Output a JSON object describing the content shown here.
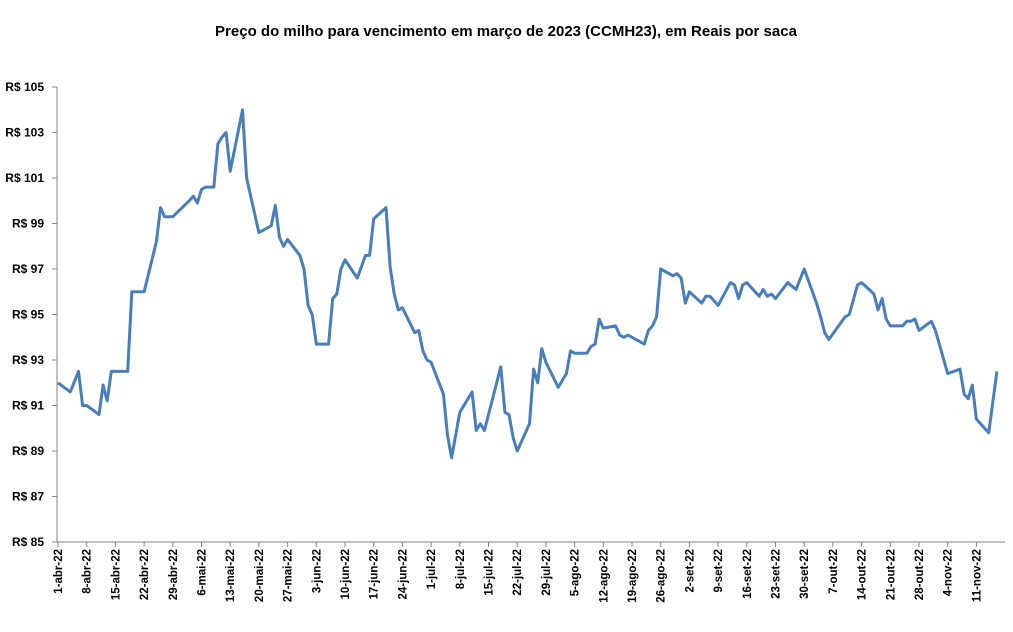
{
  "chart_data": {
    "type": "line",
    "title": "Preço do milho para vencimento em março de 2023 (CCMH23), em Reais por saca",
    "xlabel": "",
    "ylabel": "",
    "ylim": [
      85,
      105
    ],
    "y_ticks": [
      85,
      87,
      89,
      91,
      93,
      95,
      97,
      99,
      101,
      103,
      105
    ],
    "y_tick_labels": [
      "R$ 85",
      "R$ 87",
      "R$ 89",
      "R$ 91",
      "R$ 93",
      "R$ 95",
      "R$ 97",
      "R$ 99",
      "R$ 101",
      "R$ 103",
      "R$ 105"
    ],
    "x_unit": "days since 1-abr-22",
    "x_tick_labels": [
      "1-abr-22",
      "8-abr-22",
      "15-abr-22",
      "22-abr-22",
      "29-abr-22",
      "6-mai-22",
      "13-mai-22",
      "20-mai-22",
      "27-mai-22",
      "3-jun-22",
      "10-jun-22",
      "17-jun-22",
      "24-jun-22",
      "1-jul-22",
      "8-jul-22",
      "15-jul-22",
      "22-jul-22",
      "29-jul-22",
      "5-ago-22",
      "12-ago-22",
      "19-ago-22",
      "26-ago-22",
      "2-set-22",
      "9-set-22",
      "16-set-22",
      "23-set-22",
      "30-set-22",
      "7-out-22",
      "14-out-22",
      "21-out-22",
      "28-out-22",
      "4-nov-22",
      "11-nov-22"
    ],
    "x_tick_interval_days": 7,
    "xlim": [
      0,
      231
    ],
    "grid": false,
    "legend": "none",
    "line_color": "#4a7ebb",
    "series": [
      {
        "name": "CCMH23",
        "points": [
          [
            0,
            92.0
          ],
          [
            3,
            91.6
          ],
          [
            5,
            92.5
          ],
          [
            6,
            91.0
          ],
          [
            7,
            91.0
          ],
          [
            10,
            90.6
          ],
          [
            11,
            91.9
          ],
          [
            12,
            91.2
          ],
          [
            13,
            92.5
          ],
          [
            17,
            92.5
          ],
          [
            18,
            96.0
          ],
          [
            21,
            96.0
          ],
          [
            24,
            98.2
          ],
          [
            25,
            99.7
          ],
          [
            26,
            99.3
          ],
          [
            28,
            99.3
          ],
          [
            32,
            100.0
          ],
          [
            33,
            100.2
          ],
          [
            34,
            99.9
          ],
          [
            35,
            100.5
          ],
          [
            36,
            100.6
          ],
          [
            38,
            100.6
          ],
          [
            39,
            102.5
          ],
          [
            40,
            102.8
          ],
          [
            41,
            103.0
          ],
          [
            42,
            101.3
          ],
          [
            45,
            104.0
          ],
          [
            46,
            101.0
          ],
          [
            47,
            100.2
          ],
          [
            49,
            98.6
          ],
          [
            52,
            98.9
          ],
          [
            53,
            99.8
          ],
          [
            54,
            98.4
          ],
          [
            55,
            98.0
          ],
          [
            56,
            98.3
          ],
          [
            59,
            97.6
          ],
          [
            60,
            97.0
          ],
          [
            61,
            95.4
          ],
          [
            62,
            95.0
          ],
          [
            63,
            93.7
          ],
          [
            66,
            93.7
          ],
          [
            67,
            95.7
          ],
          [
            68,
            95.9
          ],
          [
            69,
            97.0
          ],
          [
            70,
            97.4
          ],
          [
            73,
            96.6
          ],
          [
            75,
            97.6
          ],
          [
            76,
            97.6
          ],
          [
            77,
            99.2
          ],
          [
            80,
            99.7
          ],
          [
            81,
            97.1
          ],
          [
            82,
            95.9
          ],
          [
            83,
            95.2
          ],
          [
            84,
            95.3
          ],
          [
            87,
            94.2
          ],
          [
            88,
            94.3
          ],
          [
            89,
            93.4
          ],
          [
            90,
            93.0
          ],
          [
            91,
            92.9
          ],
          [
            94,
            91.5
          ],
          [
            95,
            89.7
          ],
          [
            96,
            88.7
          ],
          [
            98,
            90.7
          ],
          [
            101,
            91.6
          ],
          [
            102,
            89.9
          ],
          [
            103,
            90.2
          ],
          [
            104,
            89.9
          ],
          [
            108,
            92.7
          ],
          [
            109,
            90.7
          ],
          [
            110,
            90.6
          ],
          [
            111,
            89.6
          ],
          [
            112,
            89.0
          ],
          [
            115,
            90.2
          ],
          [
            116,
            92.6
          ],
          [
            117,
            92.0
          ],
          [
            118,
            93.5
          ],
          [
            119,
            92.9
          ],
          [
            122,
            91.8
          ],
          [
            124,
            92.4
          ],
          [
            125,
            93.4
          ],
          [
            126,
            93.3
          ],
          [
            129,
            93.3
          ],
          [
            130,
            93.6
          ],
          [
            131,
            93.7
          ],
          [
            132,
            94.8
          ],
          [
            133,
            94.4
          ],
          [
            136,
            94.5
          ],
          [
            137,
            94.1
          ],
          [
            138,
            94.0
          ],
          [
            139,
            94.1
          ],
          [
            143,
            93.7
          ],
          [
            144,
            94.3
          ],
          [
            145,
            94.5
          ],
          [
            146,
            94.9
          ],
          [
            147,
            97.0
          ],
          [
            150,
            96.7
          ],
          [
            151,
            96.8
          ],
          [
            152,
            96.6
          ],
          [
            153,
            95.5
          ],
          [
            154,
            96.0
          ],
          [
            157,
            95.5
          ],
          [
            158,
            95.8
          ],
          [
            159,
            95.8
          ],
          [
            161,
            95.4
          ],
          [
            164,
            96.4
          ],
          [
            165,
            96.3
          ],
          [
            166,
            95.7
          ],
          [
            167,
            96.3
          ],
          [
            168,
            96.4
          ],
          [
            171,
            95.8
          ],
          [
            172,
            96.1
          ],
          [
            173,
            95.8
          ],
          [
            174,
            95.9
          ],
          [
            175,
            95.7
          ],
          [
            178,
            96.4
          ],
          [
            180,
            96.1
          ],
          [
            182,
            97.0
          ],
          [
            185,
            95.5
          ],
          [
            186,
            94.9
          ],
          [
            187,
            94.2
          ],
          [
            188,
            93.9
          ],
          [
            190,
            94.4
          ],
          [
            192,
            94.9
          ],
          [
            193,
            95.0
          ],
          [
            195,
            96.3
          ],
          [
            196,
            96.4
          ],
          [
            199,
            95.9
          ],
          [
            200,
            95.2
          ],
          [
            201,
            95.7
          ],
          [
            202,
            94.8
          ],
          [
            203,
            94.5
          ],
          [
            206,
            94.5
          ],
          [
            207,
            94.7
          ],
          [
            208,
            94.7
          ],
          [
            209,
            94.8
          ],
          [
            210,
            94.3
          ],
          [
            213,
            94.7
          ],
          [
            214,
            94.3
          ],
          [
            217,
            92.4
          ],
          [
            220,
            92.6
          ],
          [
            221,
            91.5
          ],
          [
            222,
            91.3
          ],
          [
            223,
            91.9
          ],
          [
            224,
            90.4
          ],
          [
            227,
            89.8
          ],
          [
            229,
            92.5
          ]
        ]
      }
    ]
  }
}
